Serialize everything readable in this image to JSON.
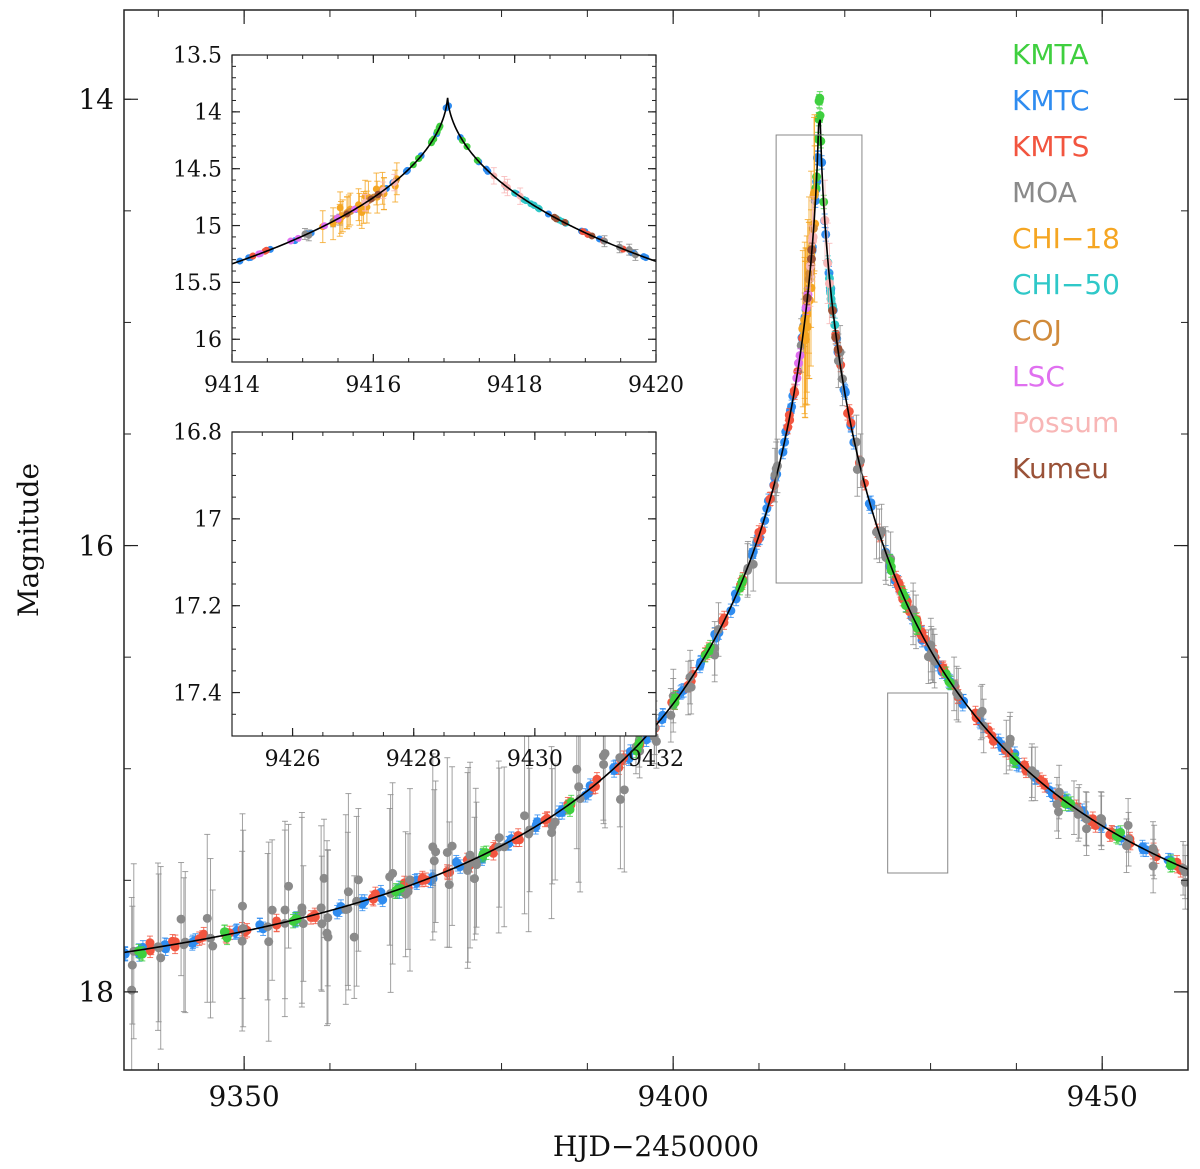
{
  "chart_data": {
    "type": "scatter",
    "title": "",
    "xlabel": "HJD−2450000",
    "ylabel": "Magnitude",
    "main": {
      "xlim": [
        9336,
        9460
      ],
      "ylim": [
        18.35,
        13.6
      ],
      "xticks": [
        9350,
        9400,
        9450
      ],
      "yticks": [
        14,
        16,
        18
      ],
      "xtick_labels": [
        "9350",
        "9400",
        "9450"
      ],
      "ytick_labels": [
        "14",
        "16",
        "18"
      ]
    },
    "model": {
      "t0": 9417.05,
      "base": 18.15,
      "amp": 4.3,
      "tau": 14.5,
      "alpha": 0.55
    },
    "legend": [
      {
        "name": "KMTA",
        "color": "#3fcf3f"
      },
      {
        "name": "KMTC",
        "color": "#2f8cf0"
      },
      {
        "name": "KMTS",
        "color": "#f2553f"
      },
      {
        "name": "MOA",
        "color": "#8a8a8a"
      },
      {
        "name": "CHI−18",
        "color": "#f5a623"
      },
      {
        "name": "CHI−50",
        "color": "#2fc8c8"
      },
      {
        "name": "COJ",
        "color": "#d08a3a"
      },
      {
        "name": "LSC",
        "color": "#e070f0"
      },
      {
        "name": "Possum",
        "color": "#f8b6b6"
      },
      {
        "name": "Kumeu",
        "color": "#9a5238"
      }
    ],
    "series": [
      {
        "name": "KMTC",
        "color": "#2f8cf0",
        "x": [
          9336,
          9338,
          9341,
          9344,
          9349,
          9352,
          9356,
          9361,
          9364,
          9366,
          9368,
          9370,
          9372,
          9375,
          9378,
          9381,
          9384,
          9387,
          9390,
          9393,
          9395,
          9397,
          9399,
          9401,
          9403,
          9405,
          9407,
          9409,
          9410,
          9411,
          9412,
          9413,
          9414,
          9414.8,
          9415.5,
          9416,
          9416.5,
          9416.8,
          9417.5,
          9418.2,
          9419,
          9420,
          9421,
          9423,
          9425,
          9426,
          9427,
          9428,
          9429,
          9430,
          9431,
          9432,
          9434,
          9436,
          9438,
          9440,
          9442,
          9444,
          9446,
          9448,
          9450,
          9452,
          9455,
          9458
        ]
      },
      {
        "name": "KMTS",
        "color": "#f2553f",
        "x": [
          9339,
          9342,
          9345,
          9348,
          9350,
          9354,
          9358,
          9365,
          9369,
          9371,
          9374,
          9376,
          9379,
          9382,
          9385,
          9388,
          9391,
          9394,
          9396,
          9398,
          9400,
          9402,
          9404,
          9406,
          9408,
          9410,
          9411.5,
          9413.5,
          9414.2,
          9415.3,
          9419.2,
          9420.5,
          9422,
          9424,
          9426.2,
          9426.4,
          9426.6,
          9427.3,
          9428.2,
          9428.7,
          9429.3,
          9430.4,
          9431.5,
          9433,
          9435,
          9437,
          9439,
          9441,
          9443,
          9445,
          9447,
          9449,
          9451,
          9453,
          9456,
          9459
        ]
      },
      {
        "name": "MOA",
        "color": "#8a8a8a",
        "x": [
          9337,
          9340,
          9343,
          9346,
          9350,
          9353,
          9355,
          9357,
          9359,
          9360,
          9362,
          9363,
          9367,
          9369,
          9372,
          9374,
          9376,
          9377,
          9380,
          9383,
          9386,
          9389,
          9392,
          9394,
          9396,
          9398,
          9400,
          9402,
          9405,
          9409,
          9412,
          9415.2,
          9419.5,
          9421.5,
          9424,
          9425,
          9428.2,
          9429.8,
          9430.2,
          9433,
          9436,
          9439,
          9442,
          9445,
          9447,
          9448,
          9450,
          9453,
          9456,
          9459.5
        ]
      },
      {
        "name": "KMTA",
        "color": "#3fcf3f",
        "x": [
          9338,
          9348,
          9356,
          9368,
          9378,
          9388,
          9396,
          9400,
          9404,
          9408,
          9416.8,
          9417.0,
          9417.2,
          9425.1,
          9427,
          9428.1,
          9432,
          9440,
          9446,
          9452,
          9458
        ]
      },
      {
        "name": "CHI−18",
        "color": "#f5a623",
        "x": [
          9415.4,
          9415.55,
          9415.7,
          9415.85,
          9416.0,
          9416.15
        ]
      },
      {
        "name": "CHI−50",
        "color": "#2fc8c8",
        "x": [
          9418.2,
          9418.35,
          9418.5
        ]
      },
      {
        "name": "COJ",
        "color": "#d08a3a",
        "x": [
          9416.0,
          9416.1
        ]
      },
      {
        "name": "LSC",
        "color": "#e070f0",
        "x": [
          9414.7,
          9415.45
        ]
      },
      {
        "name": "Possum",
        "color": "#f8b6b6",
        "x": [
          9416.0,
          9418.0
        ]
      },
      {
        "name": "Kumeu",
        "color": "#9a5238",
        "x": [
          9415.9,
          9418.9
        ]
      }
    ],
    "inset_top": {
      "xlim": [
        9414,
        9420
      ],
      "ylim": [
        16.2,
        13.5
      ],
      "xticks": [
        9414,
        9416,
        9418,
        9420
      ],
      "yticks": [
        13.5,
        14,
        14.5,
        15,
        15.5,
        16
      ],
      "xtick_labels": [
        "9414",
        "9416",
        "9418",
        "9420"
      ],
      "ytick_labels": [
        "13.5",
        "14",
        "14.5",
        "15",
        "15.5",
        "16"
      ]
    },
    "inset_bottom": {
      "xlim": [
        9425,
        9432
      ],
      "ylim": [
        17.5,
        16.8
      ],
      "xticks": [
        9426,
        9428,
        9430,
        9432
      ],
      "yticks": [
        16.8,
        17,
        17.2,
        17.4
      ],
      "xtick_labels": [
        "9426",
        "9428",
        "9430",
        "9432"
      ],
      "ytick_labels": [
        "16.8",
        "17",
        "17.2",
        "17.4"
      ]
    }
  }
}
